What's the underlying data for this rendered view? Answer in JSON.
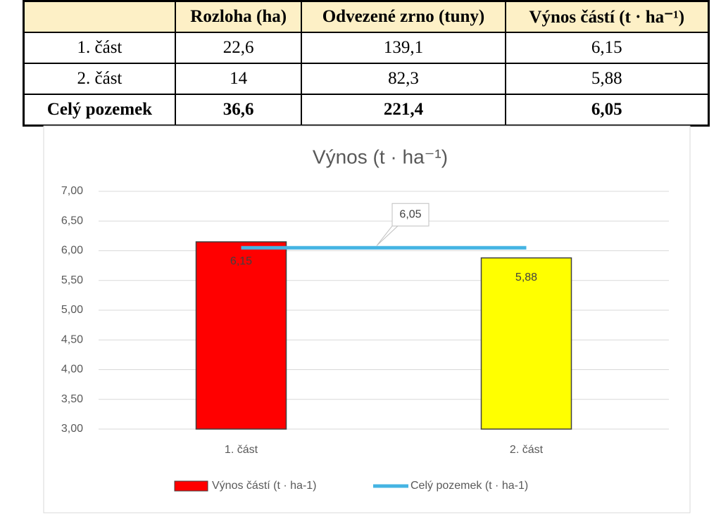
{
  "table": {
    "header": [
      "Rozloha (ha)",
      "Odvezené zrno (tuny)",
      "Výnos částí (t · ha⁻¹)"
    ],
    "rows": [
      [
        "1. část",
        "22,6",
        "139,1",
        "6,15"
      ],
      [
        "2. část",
        "14",
        "82,3",
        "5,88"
      ],
      [
        "Celý pozemek",
        "36,6",
        "221,4",
        "6,05"
      ]
    ]
  },
  "chart_data": {
    "type": "bar",
    "title": "Výnos (t · ha⁻¹)",
    "categories": [
      "1. část",
      "2. část"
    ],
    "series": [
      {
        "name": "Výnos částí (t · ha-1)",
        "type": "bar",
        "colors": [
          "#ff0000",
          "#ffff00"
        ],
        "values": [
          6.15,
          5.88
        ],
        "value_labels": [
          "6,15",
          "5,88"
        ]
      },
      {
        "name": "Celý pozemek (t · ha-1)",
        "type": "line",
        "color": "#45b4e3",
        "values": [
          6.05,
          6.05
        ],
        "value_labels": [
          "6,05",
          null
        ]
      }
    ],
    "ylim": [
      3,
      7
    ],
    "yticks": [
      {
        "value": 3,
        "label": "3,00"
      },
      {
        "value": 3.5,
        "label": "3,50"
      },
      {
        "value": 4,
        "label": "4,00"
      },
      {
        "value": 4.5,
        "label": "4,50"
      },
      {
        "value": 5,
        "label": "5,00"
      },
      {
        "value": 5.5,
        "label": "5,50"
      },
      {
        "value": 6,
        "label": "6,00"
      },
      {
        "value": 6.5,
        "label": "6,50"
      },
      {
        "value": 7,
        "label": "7,00"
      }
    ],
    "grid": true,
    "legend": "bottom"
  }
}
